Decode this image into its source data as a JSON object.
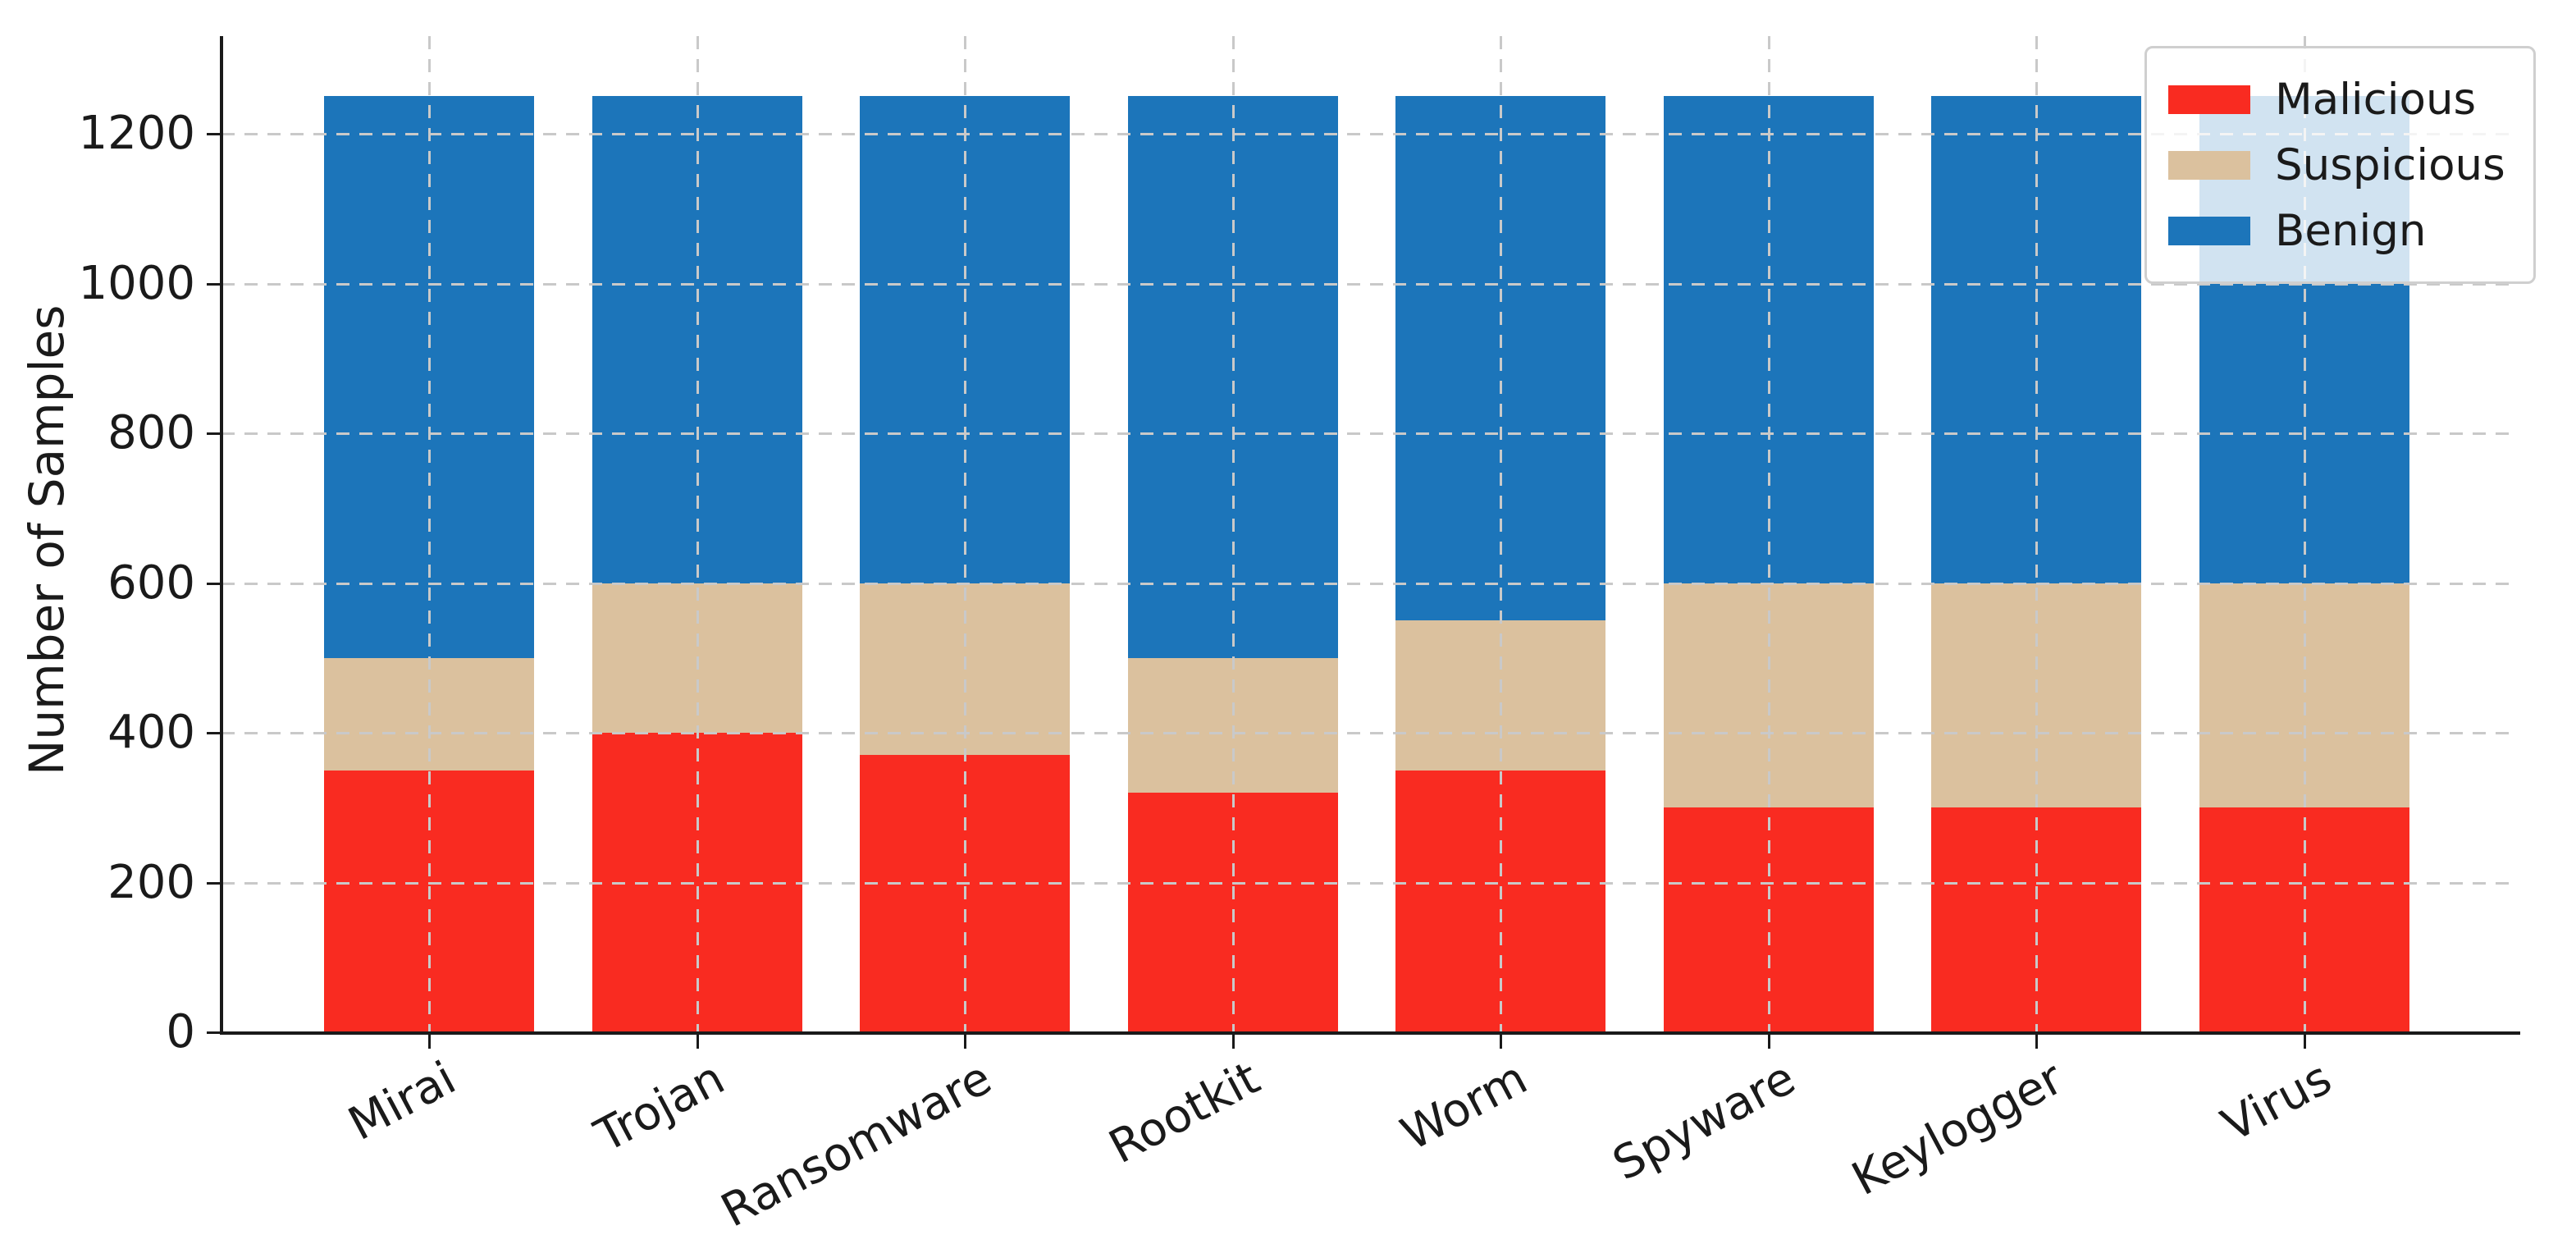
{
  "chart_data": {
    "type": "bar",
    "stacked": true,
    "title": "",
    "xlabel": "",
    "ylabel": "Number of Samples",
    "categories": [
      "Mirai",
      "Trojan",
      "Ransomware",
      "Rootkit",
      "Worm",
      "Spyware",
      "Keylogger",
      "Virus"
    ],
    "series": [
      {
        "name": "Malicious",
        "color": "#f92b21",
        "values": [
          350,
          400,
          370,
          320,
          350,
          300,
          300,
          300
        ]
      },
      {
        "name": "Suspicious",
        "color": "#dbc19e",
        "values": [
          150,
          200,
          230,
          180,
          200,
          300,
          300,
          300
        ]
      },
      {
        "name": "Benign",
        "color": "#1c75ba",
        "values": [
          750,
          650,
          650,
          750,
          700,
          650,
          650,
          650
        ]
      }
    ],
    "bar_totals": [
      1250,
      1250,
      1250,
      1250,
      1250,
      1250,
      1250,
      1250
    ],
    "yticks": [
      0,
      200,
      400,
      600,
      800,
      1000,
      1200
    ],
    "ylim": [
      0,
      1330
    ],
    "grid": true,
    "grid_style": "dashed",
    "legend_position": "upper right",
    "legend_framealpha": 0.8,
    "xtick_rotation_deg": 28
  }
}
